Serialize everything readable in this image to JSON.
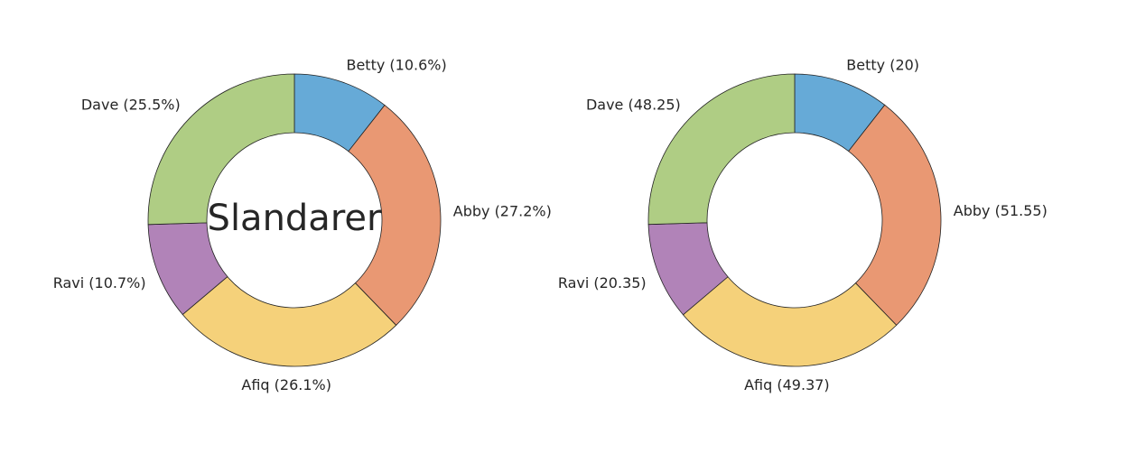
{
  "chart_data": [
    {
      "type": "pie",
      "style": "donut",
      "center_label": "Slandarer",
      "label_format": "percent",
      "labels": [
        "Betty",
        "Abby",
        "Afiq",
        "Ravi",
        "Dave"
      ],
      "values": [
        10.6,
        27.2,
        26.1,
        10.7,
        25.5
      ],
      "display_labels": [
        "Betty (10.6%)",
        "Abby (27.2%)",
        "Afiq (26.1%)",
        "Ravi (10.7%)",
        "Dave (25.5%)"
      ],
      "colors": [
        "#66aad7",
        "#e99873",
        "#f5d17a",
        "#b183b8",
        "#afcd84"
      ],
      "start": "12 o'clock",
      "direction": "clockwise"
    },
    {
      "type": "pie",
      "style": "donut",
      "center_label": "",
      "label_format": "value",
      "labels": [
        "Betty",
        "Abby",
        "Afiq",
        "Ravi",
        "Dave"
      ],
      "values": [
        20,
        51.55,
        49.37,
        20.35,
        48.25
      ],
      "display_labels": [
        "Betty (20)",
        "Abby (51.55)",
        "Afiq (49.37)",
        "Ravi (20.35)",
        "Dave (48.25)"
      ],
      "colors": [
        "#66aad7",
        "#e99873",
        "#f5d17a",
        "#b183b8",
        "#afcd84"
      ],
      "start": "12 o'clock",
      "direction": "clockwise"
    }
  ]
}
